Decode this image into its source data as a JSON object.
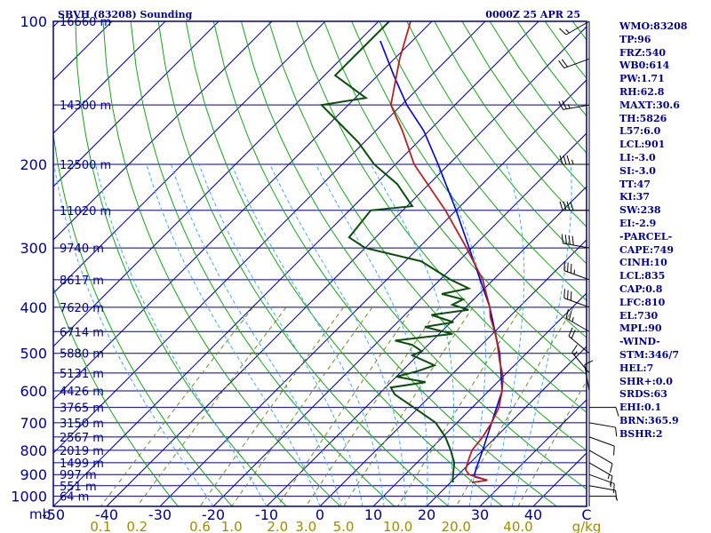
{
  "header": {
    "station": "SBVH (83208) Sounding",
    "valid_time": "0000Z 25 APR 25"
  },
  "colors": {
    "frame": "#00008b",
    "isobar": "#00008b",
    "isotherm": "#00008b",
    "dry_adiabat": "#1aa01a",
    "moist_adiabat": "#3fa7ff",
    "mixing_ratio": "#6b8e23",
    "temperature": "#b22222",
    "dewpoint": "#0b4d0b",
    "parcel": "#0000cd",
    "label_gold": "#a08a00",
    "wind": "#000000"
  },
  "chart_data": {
    "type": "line",
    "title": "SBVH (83208) Sounding",
    "xlabel_units": "C",
    "mixing_ratio_units": "g/kg",
    "pressure_label": "mb",
    "temperature_ticks": [
      "-50",
      "-40",
      "-30",
      "-20",
      "-10",
      "0",
      "10",
      "20",
      "30",
      "40",
      "C"
    ],
    "temperature_tick_values": [
      -50,
      -40,
      -30,
      -20,
      -10,
      0,
      10,
      20,
      30,
      40
    ],
    "pressure_ticks": [
      "100",
      "200",
      "300",
      "400",
      "500",
      "600",
      "700",
      "800",
      "900",
      "1000"
    ],
    "pressure_tick_values": [
      100,
      200,
      300,
      400,
      500,
      600,
      700,
      800,
      900,
      1000
    ],
    "mixing_ratio_labels": [
      "0.1",
      "0.2",
      "0.6",
      "1.0",
      "2.0",
      "3.0",
      "5.0",
      "10.0",
      "20.0",
      "40.0"
    ],
    "mixing_ratio_values": [
      0.1,
      0.2,
      0.6,
      1.0,
      2.0,
      3.0,
      5.0,
      10.0,
      20.0,
      40.0
    ],
    "heights": [
      {
        "p": 100,
        "label": "16660 m"
      },
      {
        "p": 150,
        "label": "14300 m"
      },
      {
        "p": 200,
        "label": "12500 m"
      },
      {
        "p": 250,
        "label": "11020 m"
      },
      {
        "p": 300,
        "label": "9740 m"
      },
      {
        "p": 350,
        "label": "8617 m"
      },
      {
        "p": 400,
        "label": "7620 m"
      },
      {
        "p": 450,
        "label": "6714 m"
      },
      {
        "p": 500,
        "label": "5880 m"
      },
      {
        "p": 550,
        "label": "5131 m"
      },
      {
        "p": 600,
        "label": "4426 m"
      },
      {
        "p": 650,
        "label": "3765 m"
      },
      {
        "p": 700,
        "label": "3150 m"
      },
      {
        "p": 750,
        "label": "2567 m"
      },
      {
        "p": 800,
        "label": "2019 m"
      },
      {
        "p": 850,
        "label": "1499 m"
      },
      {
        "p": 900,
        "label": "997 m"
      },
      {
        "p": 950,
        "label": "551 m"
      },
      {
        "p": 1000,
        "label": "64 m"
      }
    ],
    "temperature_profile": [
      [
        935,
        24.0
      ],
      [
        925,
        26.5
      ],
      [
        900,
        22.0
      ],
      [
        880,
        20.5
      ],
      [
        850,
        19.5
      ],
      [
        800,
        18.0
      ],
      [
        750,
        17.5
      ],
      [
        700,
        16.5
      ],
      [
        650,
        15.0
      ],
      [
        600,
        12.5
      ],
      [
        560,
        10.0
      ],
      [
        520,
        6.5
      ],
      [
        480,
        3.0
      ],
      [
        450,
        0.0
      ],
      [
        420,
        -3.5
      ],
      [
        400,
        -5.5
      ],
      [
        350,
        -12.0
      ],
      [
        300,
        -21.0
      ],
      [
        250,
        -32.0
      ],
      [
        200,
        -46.5
      ],
      [
        170,
        -55.0
      ],
      [
        150,
        -62.0
      ],
      [
        120,
        -69.0
      ],
      [
        100,
        -74.0
      ]
    ],
    "dewpoint_profile": [
      [
        935,
        20.5
      ],
      [
        925,
        20.0
      ],
      [
        900,
        19.0
      ],
      [
        850,
        17.0
      ],
      [
        800,
        14.0
      ],
      [
        750,
        10.5
      ],
      [
        700,
        6.0
      ],
      [
        650,
        -1.0
      ],
      [
        610,
        -7.0
      ],
      [
        590,
        -9.0
      ],
      [
        575,
        -3.5
      ],
      [
        560,
        -10.0
      ],
      [
        545,
        -7.0
      ],
      [
        530,
        -5.0
      ],
      [
        505,
        -11.0
      ],
      [
        495,
        -10.0
      ],
      [
        480,
        -13.0
      ],
      [
        470,
        -17.0
      ],
      [
        455,
        -7.5
      ],
      [
        440,
        -14.0
      ],
      [
        430,
        -9.5
      ],
      [
        415,
        -15.0
      ],
      [
        405,
        -9.0
      ],
      [
        395,
        -13.0
      ],
      [
        385,
        -12.0
      ],
      [
        375,
        -17.0
      ],
      [
        365,
        -13.0
      ],
      [
        350,
        -18.0
      ],
      [
        320,
        -27.0
      ],
      [
        300,
        -40.0
      ],
      [
        285,
        -45.0
      ],
      [
        250,
        -46.0
      ],
      [
        245,
        -39.0
      ],
      [
        220,
        -46.0
      ],
      [
        200,
        -54.0
      ],
      [
        180,
        -61.0
      ],
      [
        150,
        -75.0
      ],
      [
        145,
        -68.0
      ],
      [
        130,
        -78.0
      ],
      [
        115,
        -78.0
      ],
      [
        100,
        -78.0
      ]
    ],
    "parcel_profile": [
      [
        925,
        26.5
      ],
      [
        910,
        23.5
      ],
      [
        900,
        23.0
      ],
      [
        850,
        21.5
      ],
      [
        800,
        20.0
      ],
      [
        700,
        16.5
      ],
      [
        600,
        12.5
      ],
      [
        500,
        5.0
      ],
      [
        400,
        -5.5
      ],
      [
        300,
        -20.5
      ],
      [
        250,
        -30.0
      ],
      [
        200,
        -42.0
      ],
      [
        170,
        -51.0
      ],
      [
        150,
        -59.0
      ],
      [
        130,
        -67.0
      ],
      [
        110,
        -76.0
      ]
    ],
    "winds": [
      {
        "p": 1000,
        "dir": 90,
        "speed": 5
      },
      {
        "p": 950,
        "dir": 100,
        "speed": 10
      },
      {
        "p": 900,
        "dir": 110,
        "speed": 15
      },
      {
        "p": 850,
        "dir": 120,
        "speed": 15
      },
      {
        "p": 800,
        "dir": 120,
        "speed": 10
      },
      {
        "p": 750,
        "dir": 110,
        "speed": 10
      },
      {
        "p": 700,
        "dir": 100,
        "speed": 10
      },
      {
        "p": 650,
        "dir": 90,
        "speed": 10
      },
      {
        "p": 600,
        "dir": 350,
        "speed": 10
      },
      {
        "p": 550,
        "dir": 320,
        "speed": 15
      },
      {
        "p": 500,
        "dir": 310,
        "speed": 20
      },
      {
        "p": 450,
        "dir": 300,
        "speed": 25
      },
      {
        "p": 400,
        "dir": 290,
        "speed": 30
      },
      {
        "p": 350,
        "dir": 290,
        "speed": 35
      },
      {
        "p": 300,
        "dir": 280,
        "speed": 40
      },
      {
        "p": 250,
        "dir": 270,
        "speed": 40
      },
      {
        "p": 200,
        "dir": 270,
        "speed": 35
      },
      {
        "p": 150,
        "dir": 260,
        "speed": 25
      },
      {
        "p": 120,
        "dir": 250,
        "speed": 20
      },
      {
        "p": 100,
        "dir": 240,
        "speed": 15
      }
    ]
  },
  "indices": [
    "WMO:83208",
    "TP:96",
    "FRZ:540",
    "WB0:614",
    "PW:1.71",
    "RH:62.8",
    "MAXT:30.6",
    "TH:5826",
    "L57:6.0",
    "LCL:901",
    "LI:-3.0",
    "SI:-3.0",
    "TT:47",
    "KI:37",
    "SW:238",
    "EI:-2.9",
    "-PARCEL-",
    "CAPE:749",
    "CINH:10",
    "LCL:835",
    "CAP:0.8",
    "LFC:810",
    "EL:730",
    "MPL:90",
    "-WIND-",
    "STM:346/7",
    "HEL:7",
    "SHR+:0.0",
    "SRDS:63",
    "EHI:0.1",
    "BRN:365.9",
    "BSHR:2"
  ]
}
